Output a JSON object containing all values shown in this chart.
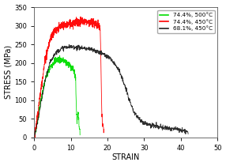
{
  "title": "",
  "xlabel": "STRAIN",
  "ylabel": "STRESS (MPa)",
  "xlim": [
    0,
    50
  ],
  "ylim": [
    0,
    350
  ],
  "xticks": [
    0,
    10,
    20,
    30,
    40,
    50
  ],
  "yticks": [
    0,
    50,
    100,
    150,
    200,
    250,
    300,
    350
  ],
  "legend_labels": [
    "74.4%, 500°C",
    "74.4%, 450°C",
    "68.1%, 450°C"
  ],
  "legend_colors": [
    "#00dd00",
    "#ff0000",
    "#222222"
  ],
  "background_color": "#ffffff",
  "green_keypoints_x": [
    0,
    0.5,
    1.5,
    3.0,
    4.5,
    5.5,
    6.5,
    7.5,
    8.5,
    9.5,
    10.5,
    11.0,
    11.3,
    11.5,
    11.7,
    11.85,
    12.0,
    12.2,
    12.5
  ],
  "green_keypoints_y": [
    0,
    20,
    80,
    155,
    190,
    205,
    210,
    208,
    203,
    195,
    185,
    175,
    155,
    80,
    40,
    55,
    70,
    40,
    10
  ],
  "red_keypoints_x": [
    0,
    0.5,
    1.5,
    3.0,
    4.5,
    5.5,
    6.5,
    7.5,
    8.5,
    9.5,
    10.5,
    11.5,
    12.5,
    13.5,
    14.5,
    15.5,
    16.5,
    17.0,
    17.5,
    18.0,
    18.2,
    18.4,
    18.6,
    18.8,
    19.0
  ],
  "red_keypoints_y": [
    0,
    30,
    105,
    210,
    268,
    285,
    293,
    298,
    302,
    305,
    308,
    310,
    311,
    312,
    311,
    309,
    306,
    303,
    300,
    295,
    200,
    80,
    35,
    25,
    22
  ],
  "black_keypoints_x": [
    0,
    0.5,
    1.5,
    3.0,
    4.5,
    5.5,
    6.5,
    7.5,
    8.5,
    9.5,
    10.5,
    11.5,
    12.5,
    13.5,
    14.5,
    15.5,
    16.5,
    17.5,
    18.5,
    19.5,
    21.0,
    23.0,
    25.0,
    27.0,
    29.0,
    31.0,
    33.0,
    35.0,
    37.0,
    39.0,
    41.0,
    42.0
  ],
  "black_keypoints_y": [
    0,
    18,
    72,
    155,
    205,
    223,
    233,
    239,
    242,
    243,
    243,
    242,
    241,
    240,
    238,
    236,
    233,
    230,
    226,
    220,
    210,
    185,
    130,
    70,
    45,
    35,
    30,
    26,
    24,
    22,
    18,
    15
  ]
}
